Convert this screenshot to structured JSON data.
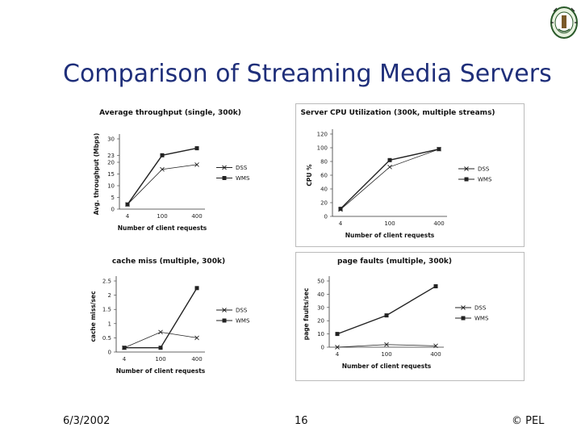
{
  "slide": {
    "title": "Comparison of Streaming Media Servers",
    "footer_date": "6/3/2002",
    "footer_page": "16",
    "footer_copyright": "© PEL"
  },
  "colors": {
    "title": "#1f2f7a",
    "line": "#222222",
    "axis": "#333333",
    "panel_border": "#bbbbbb"
  },
  "icons": {
    "logo": "university-seal-icon"
  },
  "chart_data": [
    {
      "type": "line",
      "title": "Average throughput (single, 300k)",
      "xlabel": "Number of client requests",
      "ylabel": "Avg. throughput (Mbps)",
      "categories": [
        "4",
        "100",
        "400"
      ],
      "yticks": [
        "0",
        "5",
        "10",
        "15",
        "20",
        "23",
        "30"
      ],
      "ylim": [
        0,
        30
      ],
      "series": [
        {
          "name": "DSS",
          "marker": "x",
          "values": [
            2,
            17,
            19
          ]
        },
        {
          "name": "WMS",
          "marker": "square",
          "values": [
            2,
            23,
            26
          ]
        }
      ],
      "legend": "right"
    },
    {
      "type": "line",
      "title": "Server CPU Utilization (300k, multiple streams)",
      "xlabel": "Number of client requests",
      "ylabel": "CPU %",
      "categories": [
        "4",
        "100",
        "400"
      ],
      "yticks": [
        "0",
        "20",
        "40",
        "60",
        "80",
        "100",
        "120"
      ],
      "ylim": [
        0,
        120
      ],
      "series": [
        {
          "name": "DSS",
          "marker": "x",
          "values": [
            10,
            72,
            98
          ]
        },
        {
          "name": "WMS",
          "marker": "square",
          "values": [
            11,
            82,
            98
          ]
        }
      ],
      "legend": "right"
    },
    {
      "type": "line",
      "title": "cache miss (multiple, 300k)",
      "xlabel": "Number of client requests",
      "ylabel": "cache miss/sec",
      "categories": [
        "4",
        "100",
        "400"
      ],
      "yticks": [
        "0",
        "0.5",
        "1",
        "1.5",
        "2",
        "2.5"
      ],
      "ylim": [
        0,
        2.5
      ],
      "series": [
        {
          "name": "DSS",
          "marker": "x",
          "values": [
            0.15,
            0.7,
            0.5
          ]
        },
        {
          "name": "WMS",
          "marker": "square",
          "values": [
            0.15,
            0.15,
            2.25
          ]
        }
      ],
      "legend": "right"
    },
    {
      "type": "line",
      "title": "page faults (multiple, 300k)",
      "xlabel": "Number of client requests",
      "ylabel": "page faults/sec",
      "categories": [
        "4",
        "100",
        "400"
      ],
      "yticks": [
        "0",
        "10",
        "20",
        "30",
        "40",
        "50"
      ],
      "ylim": [
        0,
        50
      ],
      "series": [
        {
          "name": "DSS",
          "marker": "x",
          "values": [
            0,
            2,
            1
          ]
        },
        {
          "name": "WMS",
          "marker": "square",
          "values": [
            10,
            24,
            46
          ]
        }
      ],
      "legend": "right"
    }
  ]
}
